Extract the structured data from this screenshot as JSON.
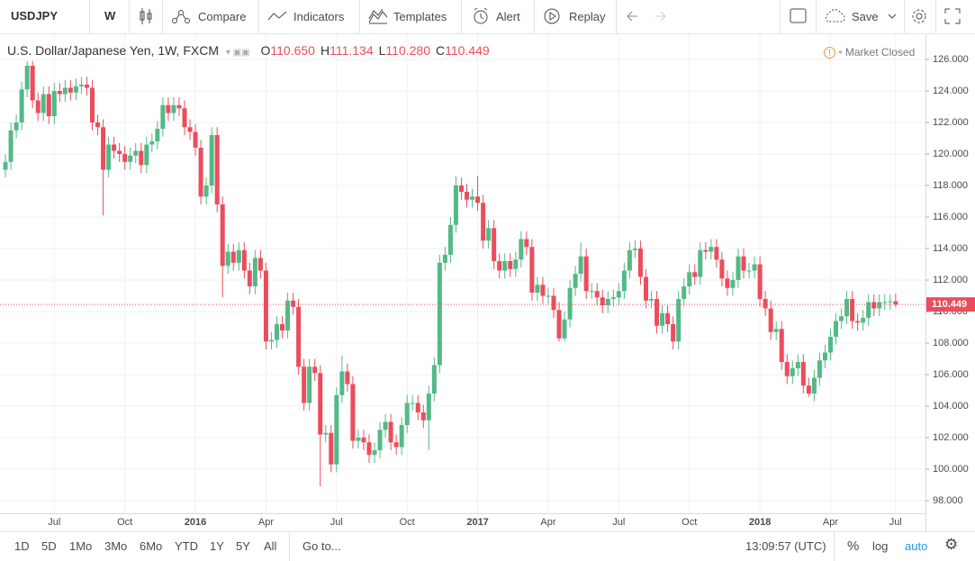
{
  "toolbar": {
    "symbol": "USDJPY",
    "interval": "W",
    "items": [
      "Compare",
      "Indicators",
      "Templates",
      "Alert",
      "Replay"
    ],
    "save": "Save"
  },
  "chart_data": {
    "type": "candlestick",
    "title": "U.S. Dollar/Japanese Yen, 1W, FXCM",
    "ohlc": [
      {
        "key": "O",
        "value": "110.650"
      },
      {
        "key": "H",
        "value": "111.134"
      },
      {
        "key": "L",
        "value": "110.280"
      },
      {
        "key": "C",
        "value": "110.449"
      }
    ],
    "status": "Market Closed",
    "up_color": "#53b987",
    "down_color": "#eb4d5c",
    "grid": true,
    "last_price_line": true,
    "open": [
      119.0,
      119.5,
      121.5,
      122.0,
      124.1,
      125.6,
      123.4,
      122.6,
      123.8,
      122.4,
      124.0,
      123.8,
      124.2,
      123.9,
      124.3,
      124.4,
      124.2,
      122.0,
      121.7,
      119.0,
      120.6,
      120.2,
      120.0,
      119.5,
      119.9,
      120.2,
      119.3,
      120.6,
      120.8,
      121.6,
      123.1,
      122.6,
      123.1,
      122.9,
      121.7,
      121.4,
      120.4,
      117.3,
      118.0,
      121.2,
      116.8,
      112.9,
      113.8,
      113.1,
      113.9,
      112.6,
      111.6,
      113.4,
      112.6,
      108.1,
      108.2,
      109.2,
      108.8,
      110.7,
      110.3,
      106.5,
      104.2,
      106.5,
      106.1,
      102.2,
      102.3,
      100.3,
      104.7,
      106.2,
      105.4,
      101.8,
      102.0,
      101.7,
      100.9,
      101.2,
      102.5,
      103.0,
      101.7,
      101.4,
      102.8,
      104.2,
      104.2,
      103.6,
      103.1,
      104.8,
      106.6,
      113.1,
      113.6,
      115.5,
      118.0,
      117.6,
      117.1,
      117.3,
      116.9,
      114.5,
      115.3,
      113.2,
      112.6,
      113.2,
      112.7,
      113.3,
      114.6,
      114.1,
      111.2,
      111.7,
      111.0,
      111.0,
      110.1,
      108.3,
      109.5,
      111.5,
      112.4,
      113.5,
      111.3,
      111.3,
      110.9,
      110.4,
      110.8,
      110.9,
      111.3,
      112.6,
      113.9,
      114.0,
      112.2,
      110.7,
      110.8,
      109.1,
      109.9,
      109.2,
      108.1,
      110.8,
      111.6,
      112.5,
      112.2,
      113.9,
      113.8,
      114.1,
      113.3,
      112.1,
      111.5,
      112.0,
      113.5,
      112.6,
      112.6,
      113.0,
      110.8,
      110.2,
      108.7,
      108.9,
      106.8,
      105.9,
      106.4,
      106.8,
      105.3,
      104.8,
      105.8,
      106.9,
      107.4,
      108.4,
      109.4,
      109.7,
      110.8,
      109.4,
      109.3,
      109.6,
      110.6,
      110.2,
      110.6,
      110.6,
      110.65
    ],
    "high": [
      120.0,
      122.0,
      122.5,
      124.6,
      125.9,
      125.9,
      123.9,
      124.3,
      124.3,
      124.5,
      124.5,
      124.7,
      124.7,
      124.8,
      124.9,
      124.9,
      124.7,
      122.5,
      122.2,
      121.1,
      121.1,
      120.7,
      120.5,
      120.4,
      120.7,
      120.7,
      121.1,
      121.3,
      122.1,
      123.6,
      123.6,
      123.6,
      123.6,
      123.4,
      122.2,
      121.9,
      120.9,
      118.5,
      121.7,
      121.7,
      117.3,
      114.3,
      114.3,
      114.4,
      114.4,
      113.1,
      113.9,
      113.9,
      113.1,
      108.7,
      109.7,
      109.7,
      111.2,
      111.2,
      110.8,
      107.0,
      107.0,
      107.0,
      106.6,
      102.8,
      102.8,
      105.2,
      107.2,
      106.7,
      105.9,
      102.5,
      102.5,
      102.2,
      101.7,
      103.0,
      103.5,
      103.5,
      102.2,
      103.3,
      104.7,
      104.7,
      104.7,
      104.1,
      105.3,
      107.1,
      113.6,
      114.1,
      116.0,
      118.6,
      118.5,
      118.1,
      117.8,
      118.6,
      117.4,
      115.8,
      115.8,
      113.7,
      113.7,
      113.7,
      113.8,
      115.1,
      115.1,
      114.6,
      112.2,
      112.2,
      111.5,
      111.5,
      110.6,
      110.0,
      112.0,
      112.9,
      114.4,
      114.0,
      111.8,
      111.8,
      111.4,
      111.3,
      111.4,
      111.8,
      113.1,
      114.4,
      114.5,
      114.5,
      112.7,
      111.3,
      111.3,
      110.4,
      110.4,
      109.7,
      111.3,
      112.1,
      113.0,
      113.0,
      114.4,
      114.4,
      114.6,
      114.6,
      113.8,
      112.6,
      112.5,
      114.0,
      114.0,
      113.1,
      113.5,
      113.5,
      111.3,
      110.7,
      109.4,
      109.4,
      107.3,
      106.9,
      107.3,
      107.3,
      105.8,
      106.3,
      107.4,
      107.9,
      108.9,
      109.9,
      110.2,
      111.3,
      111.3,
      109.9,
      110.1,
      111.1,
      111.1,
      111.1,
      111.1,
      111.1,
      111.134
    ],
    "low": [
      118.5,
      119.0,
      121.0,
      121.5,
      123.6,
      122.9,
      122.1,
      122.1,
      121.9,
      121.9,
      123.3,
      123.3,
      123.4,
      123.4,
      123.8,
      123.7,
      121.5,
      121.2,
      116.1,
      118.5,
      119.7,
      119.5,
      119.0,
      119.0,
      119.4,
      118.8,
      118.8,
      120.1,
      120.3,
      121.1,
      122.1,
      122.1,
      122.4,
      121.2,
      120.9,
      119.9,
      116.8,
      116.8,
      117.5,
      116.3,
      110.9,
      112.4,
      112.6,
      112.6,
      112.1,
      111.1,
      111.1,
      112.1,
      107.6,
      107.6,
      107.7,
      108.3,
      108.3,
      109.8,
      106.0,
      103.7,
      103.7,
      105.6,
      98.9,
      101.7,
      99.8,
      99.8,
      104.2,
      104.9,
      101.3,
      101.3,
      101.2,
      100.4,
      100.4,
      100.7,
      102.0,
      101.2,
      100.9,
      100.9,
      102.3,
      103.7,
      103.1,
      102.6,
      101.2,
      104.3,
      106.1,
      112.6,
      113.1,
      115.0,
      117.1,
      116.6,
      116.6,
      116.4,
      114.0,
      114.0,
      112.7,
      112.1,
      112.1,
      112.2,
      112.2,
      112.8,
      113.6,
      110.7,
      110.7,
      110.5,
      110.5,
      109.6,
      108.1,
      108.1,
      109.0,
      111.0,
      111.9,
      110.8,
      110.8,
      110.4,
      109.9,
      109.9,
      110.3,
      110.4,
      110.8,
      112.1,
      113.4,
      111.7,
      110.2,
      110.2,
      108.6,
      108.6,
      108.7,
      107.6,
      107.6,
      110.3,
      111.1,
      111.7,
      111.7,
      113.3,
      113.3,
      112.8,
      111.6,
      111.0,
      111.0,
      111.5,
      112.1,
      112.1,
      112.1,
      110.3,
      109.7,
      108.2,
      108.2,
      106.3,
      105.4,
      105.4,
      105.9,
      104.8,
      104.6,
      104.3,
      105.3,
      106.4,
      106.9,
      107.9,
      108.9,
      109.2,
      108.9,
      108.8,
      108.8,
      109.1,
      109.7,
      109.7,
      110.1,
      110.1,
      110.28
    ],
    "close": [
      119.5,
      121.5,
      122.0,
      124.1,
      125.6,
      123.4,
      122.6,
      123.8,
      122.4,
      124.0,
      123.8,
      124.2,
      123.9,
      124.3,
      124.4,
      124.2,
      122.0,
      121.7,
      119.0,
      120.6,
      120.2,
      120.0,
      119.5,
      119.9,
      120.2,
      119.3,
      120.6,
      120.8,
      121.6,
      123.1,
      122.6,
      123.1,
      122.9,
      121.7,
      121.4,
      120.4,
      117.3,
      118.0,
      121.2,
      116.8,
      112.9,
      113.8,
      113.1,
      113.9,
      112.6,
      111.6,
      113.4,
      112.6,
      108.1,
      108.2,
      109.2,
      108.8,
      110.7,
      110.3,
      106.5,
      104.2,
      106.5,
      106.1,
      102.2,
      102.3,
      100.3,
      104.7,
      106.2,
      105.4,
      101.8,
      102.0,
      101.7,
      100.9,
      101.2,
      102.5,
      103.0,
      101.7,
      101.4,
      102.8,
      104.2,
      104.2,
      103.6,
      103.1,
      104.8,
      106.6,
      113.1,
      113.6,
      115.5,
      118.0,
      117.6,
      117.1,
      117.3,
      116.9,
      114.5,
      115.3,
      113.2,
      112.6,
      113.2,
      112.7,
      113.3,
      114.6,
      114.1,
      111.2,
      111.7,
      111.0,
      111.0,
      110.1,
      108.3,
      109.5,
      111.5,
      112.4,
      113.5,
      111.3,
      111.3,
      110.9,
      110.4,
      110.8,
      110.9,
      111.3,
      112.6,
      113.9,
      114.0,
      112.2,
      110.7,
      110.8,
      109.1,
      109.9,
      109.2,
      108.1,
      110.8,
      111.6,
      112.5,
      112.2,
      113.9,
      113.8,
      114.1,
      113.3,
      112.1,
      111.5,
      112.0,
      113.5,
      112.6,
      112.6,
      113.0,
      110.8,
      110.2,
      108.7,
      108.9,
      106.8,
      105.9,
      106.4,
      106.8,
      105.3,
      104.8,
      105.8,
      106.9,
      107.4,
      108.4,
      109.4,
      109.7,
      110.8,
      109.4,
      109.3,
      109.6,
      110.6,
      110.2,
      110.6,
      110.6,
      110.65,
      110.449
    ],
    "xlim": [
      -1,
      169.5
    ],
    "xticks": [
      {
        "value": 9,
        "label": "Jul"
      },
      {
        "value": 22,
        "label": "Oct"
      },
      {
        "value": 35,
        "label": "2016"
      },
      {
        "value": 48,
        "label": "Apr"
      },
      {
        "value": 61,
        "label": "Jul"
      },
      {
        "value": 74,
        "label": "Oct"
      },
      {
        "value": 87,
        "label": "2017"
      },
      {
        "value": 100,
        "label": "Apr"
      },
      {
        "value": 113,
        "label": "Jul"
      },
      {
        "value": 126,
        "label": "Oct"
      },
      {
        "value": 139,
        "label": "2018"
      },
      {
        "value": 152,
        "label": "Apr"
      },
      {
        "value": 164,
        "label": "Jul"
      }
    ],
    "ylim": [
      97.2,
      127.43
    ],
    "yticks": [
      {
        "value": 98,
        "label": "98.000"
      },
      {
        "value": 100,
        "label": "100.000"
      },
      {
        "value": 102,
        "label": "102.000"
      },
      {
        "value": 104,
        "label": "104.000"
      },
      {
        "value": 106,
        "label": "106.000"
      },
      {
        "value": 108,
        "label": "108.000"
      },
      {
        "value": 110,
        "label": "110.000"
      },
      {
        "value": 112,
        "label": "112.000"
      },
      {
        "value": 114,
        "label": "114.000"
      },
      {
        "value": 116,
        "label": "116.000"
      },
      {
        "value": 118,
        "label": "118.000"
      },
      {
        "value": 120,
        "label": "120.000"
      },
      {
        "value": 122,
        "label": "122.000"
      },
      {
        "value": 124,
        "label": "124.000"
      },
      {
        "value": 126,
        "label": "126.000"
      }
    ]
  },
  "bottom_bar": {
    "ranges": [
      "1D",
      "5D",
      "1Mo",
      "3Mo",
      "6Mo",
      "YTD",
      "1Y",
      "5Y",
      "All"
    ],
    "goto": "Go to...",
    "time": "13:09:57 (UTC)",
    "percent": "%",
    "log": "log",
    "auto": "auto"
  }
}
